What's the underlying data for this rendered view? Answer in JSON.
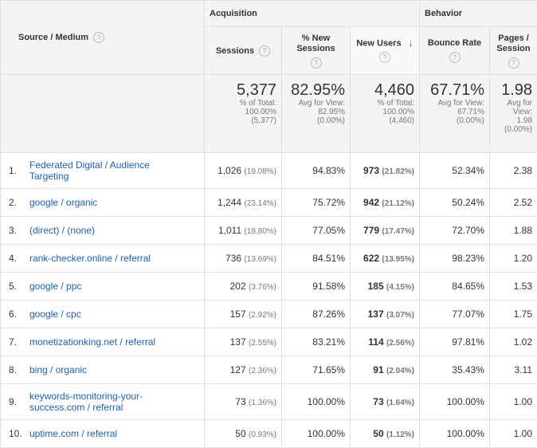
{
  "headers": {
    "source_medium": "Source / Medium",
    "acquisition": "Acquisition",
    "behavior": "Behavior",
    "sessions": "Sessions",
    "new_sessions": "% New Sessions",
    "new_users": "New Users",
    "bounce_rate": "Bounce Rate",
    "pages_session": "Pages / Session",
    "help_glyph": "?",
    "sort_glyph": "↓"
  },
  "totals": {
    "sessions": {
      "value": "5,377",
      "l1": "% of Total:",
      "l2": "100.00%",
      "l3": "(5,377)"
    },
    "new_sessions": {
      "value": "82.95%",
      "l1": "Avg for View:",
      "l2": "82.95%",
      "l3": "(0.00%)"
    },
    "new_users": {
      "value": "4,460",
      "l1": "% of Total:",
      "l2": "100.00%",
      "l3": "(4,460)"
    },
    "bounce_rate": {
      "value": "67.71%",
      "l1": "Avg for View:",
      "l2": "67.71%",
      "l3": "(0.00%)"
    },
    "pages_session": {
      "value": "1.98",
      "l1": "Avg for",
      "l2": "View:",
      "l3": "1.98",
      "l4": "(0.00%)"
    }
  },
  "rows": [
    {
      "num": "1.",
      "src1": "Federated Digital / Audience",
      "src2": "Targeting",
      "sessions": "1,026",
      "sessions_pct": "(19.08%)",
      "new_sessions": "94.83%",
      "new_users": "973",
      "new_users_pct": "(21.82%)",
      "bounce": "52.34%",
      "pages": "2.38"
    },
    {
      "num": "2.",
      "src1": "google / organic",
      "src2": "",
      "sessions": "1,244",
      "sessions_pct": "(23.14%)",
      "new_sessions": "75.72%",
      "new_users": "942",
      "new_users_pct": "(21.12%)",
      "bounce": "50.24%",
      "pages": "2.52"
    },
    {
      "num": "3.",
      "src1": "(direct) / (none)",
      "src2": "",
      "sessions": "1,011",
      "sessions_pct": "(18.80%)",
      "new_sessions": "77.05%",
      "new_users": "779",
      "new_users_pct": "(17.47%)",
      "bounce": "72.70%",
      "pages": "1.88"
    },
    {
      "num": "4.",
      "src1": "rank-checker.online / referral",
      "src2": "",
      "sessions": "736",
      "sessions_pct": "(13.69%)",
      "new_sessions": "84.51%",
      "new_users": "622",
      "new_users_pct": "(13.95%)",
      "bounce": "98.23%",
      "pages": "1.20"
    },
    {
      "num": "5.",
      "src1": "google / ppc",
      "src2": "",
      "sessions": "202",
      "sessions_pct": "(3.76%)",
      "new_sessions": "91.58%",
      "new_users": "185",
      "new_users_pct": "(4.15%)",
      "bounce": "84.65%",
      "pages": "1.53"
    },
    {
      "num": "6.",
      "src1": "google / cpc",
      "src2": "",
      "sessions": "157",
      "sessions_pct": "(2.92%)",
      "new_sessions": "87.26%",
      "new_users": "137",
      "new_users_pct": "(3.07%)",
      "bounce": "77.07%",
      "pages": "1.75"
    },
    {
      "num": "7.",
      "src1": "monetizationking.net / referral",
      "src2": "",
      "sessions": "137",
      "sessions_pct": "(2.55%)",
      "new_sessions": "83.21%",
      "new_users": "114",
      "new_users_pct": "(2.56%)",
      "bounce": "97.81%",
      "pages": "1.02"
    },
    {
      "num": "8.",
      "src1": "bing / organic",
      "src2": "",
      "sessions": "127",
      "sessions_pct": "(2.36%)",
      "new_sessions": "71.65%",
      "new_users": "91",
      "new_users_pct": "(2.04%)",
      "bounce": "35.43%",
      "pages": "3.11"
    },
    {
      "num": "9.",
      "src1": "keywords-monitoring-your-",
      "src2": "success.com / referral",
      "sessions": "73",
      "sessions_pct": "(1.36%)",
      "new_sessions": "100.00%",
      "new_users": "73",
      "new_users_pct": "(1.64%)",
      "bounce": "100.00%",
      "pages": "1.00"
    },
    {
      "num": "10.",
      "src1": "uptime.com / referral",
      "src2": "",
      "sessions": "50",
      "sessions_pct": "(0.93%)",
      "new_sessions": "100.00%",
      "new_users": "50",
      "new_users_pct": "(1.12%)",
      "bounce": "100.00%",
      "pages": "1.00"
    }
  ]
}
